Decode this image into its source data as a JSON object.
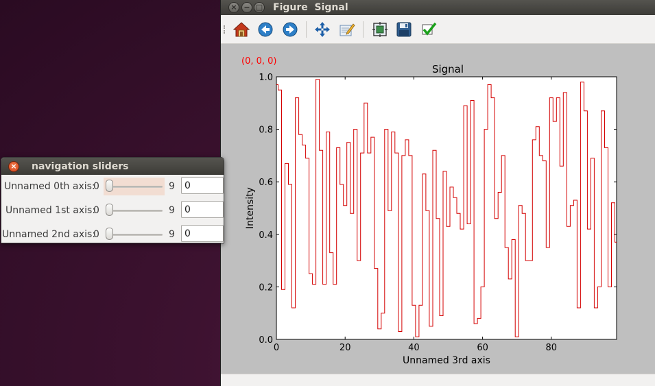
{
  "figure_window": {
    "title": "Figure  Signal",
    "coords": "(0, 0, 0)",
    "toolbar_icons": [
      "home-icon",
      "back-arrow-icon",
      "forward-arrow-icon",
      "pan-icon",
      "edit-axes-icon",
      "subplots-icon",
      "save-icon",
      "check-icon"
    ]
  },
  "nav_window": {
    "title": "navigation sliders",
    "rows": [
      {
        "label": "Unnamed 0th axis:",
        "min": "0",
        "max": "9",
        "value": "0",
        "active": true
      },
      {
        "label": "Unnamed 1st axis:",
        "min": "0",
        "max": "9",
        "value": "0",
        "active": false
      },
      {
        "label": "Unnamed 2nd axis:",
        "min": "0",
        "max": "9",
        "value": "0",
        "active": false
      }
    ]
  },
  "chart_data": {
    "type": "line",
    "drawstyle": "steps-mid",
    "title": "Signal",
    "xlabel": "Unnamed 3rd axis",
    "ylabel": "Intensity",
    "xlim": [
      0,
      99
    ],
    "ylim": [
      0.0,
      1.0
    ],
    "xticks": [
      0,
      20,
      40,
      60,
      80
    ],
    "yticks": [
      0.0,
      0.2,
      0.4,
      0.6,
      0.8,
      1.0
    ],
    "xtick_labels": [
      "0",
      "20",
      "40",
      "60",
      "80"
    ],
    "ytick_labels": [
      "0.0",
      "0.2",
      "0.4",
      "0.6",
      "0.8",
      "1.0"
    ],
    "grid": false,
    "line_color": "#d40000",
    "x": [
      0,
      1,
      2,
      3,
      4,
      5,
      6,
      7,
      8,
      9,
      10,
      11,
      12,
      13,
      14,
      15,
      16,
      17,
      18,
      19,
      20,
      21,
      22,
      23,
      24,
      25,
      26,
      27,
      28,
      29,
      30,
      31,
      32,
      33,
      34,
      35,
      36,
      37,
      38,
      39,
      40,
      41,
      42,
      43,
      44,
      45,
      46,
      47,
      48,
      49,
      50,
      51,
      52,
      53,
      54,
      55,
      56,
      57,
      58,
      59,
      60,
      61,
      62,
      63,
      64,
      65,
      66,
      67,
      68,
      69,
      70,
      71,
      72,
      73,
      74,
      75,
      76,
      77,
      78,
      79,
      80,
      81,
      82,
      83,
      84,
      85,
      86,
      87,
      88,
      89,
      90,
      91,
      92,
      93,
      94,
      95,
      96,
      97,
      98,
      99
    ],
    "values": [
      0.97,
      0.95,
      0.19,
      0.67,
      0.59,
      0.12,
      0.92,
      0.78,
      0.74,
      0.69,
      0.25,
      0.21,
      0.99,
      0.72,
      0.21,
      0.79,
      0.33,
      0.21,
      0.73,
      0.59,
      0.51,
      0.75,
      0.48,
      0.8,
      0.3,
      0.71,
      0.9,
      0.71,
      0.77,
      0.27,
      0.04,
      0.1,
      0.8,
      0.49,
      0.79,
      0.71,
      0.03,
      0.7,
      0.76,
      0.7,
      0.13,
      0.01,
      0.13,
      0.63,
      0.49,
      0.05,
      0.72,
      0.46,
      0.09,
      0.64,
      0.43,
      0.58,
      0.54,
      0.48,
      0.42,
      0.89,
      0.44,
      0.91,
      0.06,
      0.08,
      0.2,
      0.8,
      0.97,
      0.92,
      0.46,
      0.56,
      0.7,
      0.35,
      0.23,
      0.38,
      0.01,
      0.51,
      0.48,
      0.3,
      0.3,
      0.76,
      0.81,
      0.7,
      0.68,
      0.35,
      0.92,
      0.83,
      0.92,
      0.66,
      0.94,
      0.43,
      0.51,
      0.53,
      0.12,
      0.98,
      0.87,
      0.42,
      0.69,
      0.12,
      0.2,
      0.87,
      0.73,
      0.2,
      0.52,
      0.37
    ]
  }
}
